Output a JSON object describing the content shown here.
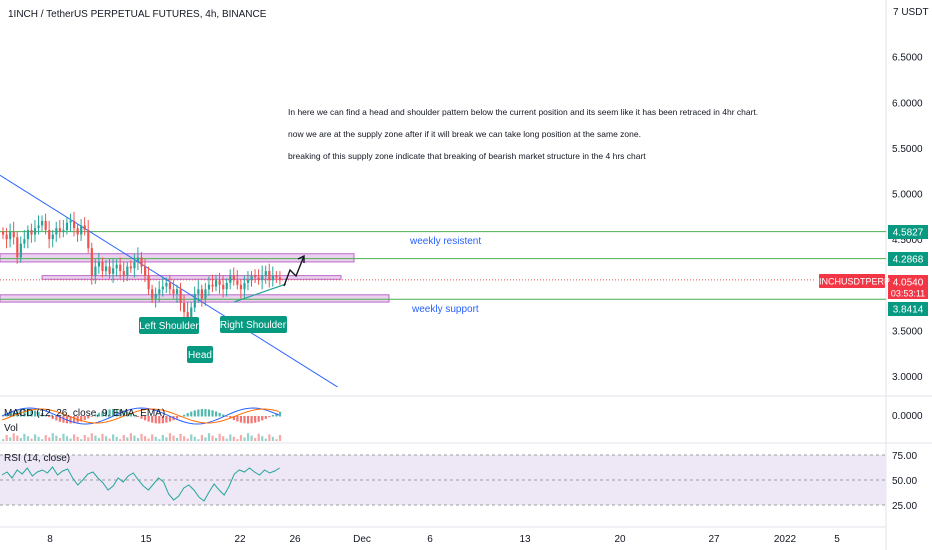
{
  "header": {
    "symbol_title": "1INCH / TetherUS PERPETUAL FUTURES, 4h, BINANCE",
    "currency": "USDT"
  },
  "annotation_lines": [
    "In here we can find a head and shoulder pattern below the current position and its seem like it has been retraced in 4hr chart.",
    "now we are at the supply zone after if it will break we can take long position at the same zone.",
    "breaking of this supply zone indicate that breaking of bearish market structure in the 4 hrs chart"
  ],
  "labels": {
    "weekly_resistance": "weekly resistent",
    "weekly_support": "weekly support",
    "left_shoulder": "Left Shoulder",
    "head": "Head",
    "right_shoulder": "Right Shoulder",
    "macd_legend": "MACD (12, 26, close, 9, EMA, EMA)",
    "vol_legend": "Vol",
    "rsi_legend": "RSI (14, close)",
    "price_symbol_tag": "1INCHUSDTPERP",
    "price_value": "4.0540",
    "countdown": "03:53:11",
    "level_top": "4.5827",
    "level_mid": "4.2868",
    "level_bottom": "3.8414"
  },
  "colors": {
    "level_line": "#4caf50",
    "zone_fill": "#e1bee7",
    "zone_stroke": "#ba68c8",
    "trendline": "#2962ff",
    "up_candle": "#26a69a",
    "down_candle": "#ef5350",
    "tag_green": "#089981",
    "tag_red": "#f23645",
    "text_blue": "#2962ff",
    "rsi_band": "#ede7f6",
    "rsi_line": "#26a69a",
    "macd_line": "#2962ff",
    "signal_line": "#ff6d00"
  },
  "chart_data": [
    {
      "type": "candlestick",
      "title": "1INCH / TetherUS PERPETUAL FUTURES, 4h, BINANCE",
      "y_axis": {
        "ticks": [
          "7 USDT",
          "6.5000",
          "6.0000",
          "5.5000",
          "5.0000",
          "4.5000",
          "3.5000",
          "3.0000"
        ],
        "tick_values": [
          7.0,
          6.5,
          6.0,
          5.5,
          5.0,
          4.5,
          3.5,
          3.0
        ],
        "ylim": [
          2.8,
          7.1
        ]
      },
      "x_axis": {
        "ticks": [
          "8",
          "15",
          "22",
          "26",
          "Dec",
          "6",
          "13",
          "20",
          "27",
          "2022",
          "5"
        ],
        "tick_dates": [
          "2021-11-08",
          "2021-11-15",
          "2021-11-22",
          "2021-11-26",
          "2021-12-01",
          "2021-12-06",
          "2021-12-13",
          "2021-12-20",
          "2021-12-27",
          "2022-01-01",
          "2022-01-05"
        ],
        "xlim": [
          "2021-11-04",
          "2022-01-09"
        ]
      },
      "levels": [
        4.5827,
        4.2868,
        3.8414
      ],
      "zones": [
        {
          "from": 4.25,
          "to": 4.34
        },
        {
          "from": 4.06,
          "to": 4.1
        },
        {
          "from": 3.81,
          "to": 3.89
        }
      ],
      "trendline": [
        {
          "x": "2021-11-04",
          "y": 5.2
        },
        {
          "x": "2021-11-29",
          "y": 2.88
        }
      ],
      "candles_close": [
        4.55,
        4.5,
        4.58,
        4.52,
        4.3,
        4.45,
        4.5,
        4.6,
        4.55,
        4.62,
        4.65,
        4.7,
        4.6,
        4.5,
        4.55,
        4.62,
        4.58,
        4.6,
        4.68,
        4.7,
        4.62,
        4.55,
        4.65,
        4.6,
        4.4,
        4.1,
        4.2,
        4.25,
        4.15,
        4.2,
        4.12,
        4.18,
        4.22,
        4.15,
        4.1,
        4.2,
        4.18,
        4.25,
        4.3,
        4.2,
        4.1,
        3.95,
        3.85,
        3.9,
        3.95,
        3.98,
        4.02,
        3.95,
        3.9,
        3.95,
        3.8,
        3.7,
        3.6,
        3.75,
        3.9,
        3.95,
        3.85,
        3.95,
        4.0,
        3.98,
        4.05,
        4.0,
        3.95,
        4.02,
        4.1,
        4.05,
        4.0,
        3.95,
        4.02,
        4.05,
        4.1,
        4.08,
        4.05,
        4.1,
        4.15,
        4.05,
        4.1,
        4.08,
        4.05
      ]
    },
    {
      "type": "line",
      "title": "RSI (14, close)",
      "y_axis": {
        "ticks": [
          "75.00",
          "50.00",
          "25.00"
        ],
        "tick_values": [
          75,
          50,
          25
        ],
        "ylim": [
          20,
          80
        ]
      },
      "values": [
        55,
        58,
        52,
        60,
        56,
        62,
        54,
        58,
        60,
        57,
        63,
        55,
        59,
        61,
        52,
        45,
        50,
        56,
        58,
        52,
        47,
        40,
        44,
        52,
        48,
        54,
        57,
        50,
        44,
        40,
        46,
        52,
        48,
        36,
        30,
        34,
        42,
        45,
        40,
        33,
        29,
        38,
        46,
        40,
        35,
        44,
        56,
        60,
        58,
        62,
        58,
        55,
        60,
        57,
        59,
        62
      ]
    }
  ]
}
